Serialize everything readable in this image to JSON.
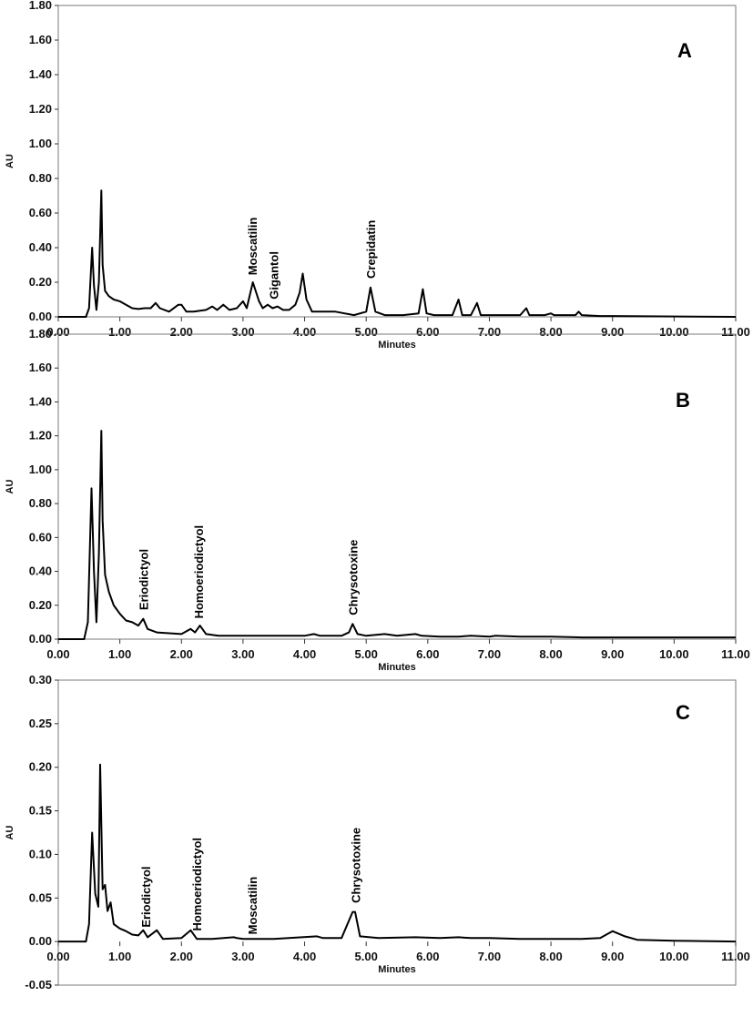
{
  "chart_data": [
    {
      "type": "line",
      "panel_label": "A",
      "xlabel": "Minutes",
      "ylabel": "AU",
      "xlim": [
        0,
        11
      ],
      "ylim": [
        0,
        1.8
      ],
      "x_ticks": [
        "0.00",
        "1.00",
        "2.00",
        "3.00",
        "4.00",
        "5.00",
        "6.00",
        "7.00",
        "8.00",
        "9.00",
        "10.00",
        "11.00"
      ],
      "y_ticks": [
        "0.00",
        "0.20",
        "0.40",
        "0.60",
        "0.80",
        "1.00",
        "1.20",
        "1.40",
        "1.60",
        "1.80"
      ],
      "annotations": [
        {
          "text": "Moscatilin",
          "x": 3.15,
          "y": 0.22
        },
        {
          "text": "Gigantol",
          "x": 3.5,
          "y": 0.08
        },
        {
          "text": "Crepidatin",
          "x": 5.07,
          "y": 0.2
        }
      ],
      "series": [
        {
          "x": [
            0,
            0.45,
            0.5,
            0.55,
            0.58,
            0.62,
            0.66,
            0.7,
            0.72,
            0.76,
            0.82,
            0.9,
            1.0,
            1.1,
            1.2,
            1.3,
            1.4,
            1.5,
            1.58,
            1.65,
            1.8,
            1.95,
            2.0,
            2.08,
            2.2,
            2.4,
            2.5,
            2.58,
            2.68,
            2.78,
            2.9,
            3.0,
            3.06,
            3.16,
            3.26,
            3.32,
            3.4,
            3.48,
            3.56,
            3.65,
            3.75,
            3.85,
            3.92,
            3.97,
            4.03,
            4.12,
            4.25,
            4.5,
            4.8,
            5.0,
            5.07,
            5.15,
            5.3,
            5.6,
            5.85,
            5.92,
            5.98,
            6.1,
            6.4,
            6.5,
            6.56,
            6.7,
            6.8,
            6.86,
            7.0,
            7.5,
            7.6,
            7.65,
            7.9,
            8.0,
            8.05,
            8.4,
            8.45,
            8.5,
            8.8,
            9.0,
            11.0
          ],
          "y": [
            0,
            0.0,
            0.05,
            0.4,
            0.18,
            0.04,
            0.2,
            0.73,
            0.3,
            0.15,
            0.12,
            0.1,
            0.09,
            0.07,
            0.05,
            0.045,
            0.05,
            0.05,
            0.08,
            0.05,
            0.03,
            0.07,
            0.07,
            0.03,
            0.03,
            0.04,
            0.06,
            0.04,
            0.07,
            0.04,
            0.05,
            0.09,
            0.05,
            0.2,
            0.09,
            0.05,
            0.07,
            0.05,
            0.06,
            0.04,
            0.04,
            0.07,
            0.14,
            0.25,
            0.1,
            0.03,
            0.03,
            0.03,
            0.01,
            0.03,
            0.17,
            0.03,
            0.01,
            0.01,
            0.02,
            0.16,
            0.02,
            0.01,
            0.01,
            0.1,
            0.01,
            0.01,
            0.08,
            0.01,
            0.01,
            0.01,
            0.05,
            0.01,
            0.01,
            0.02,
            0.01,
            0.01,
            0.03,
            0.01,
            0.005,
            0.005,
            0.0
          ]
        }
      ]
    },
    {
      "type": "line",
      "panel_label": "B",
      "xlabel": "Minutes",
      "ylabel": "AU",
      "xlim": [
        0,
        11
      ],
      "ylim": [
        0,
        1.8
      ],
      "x_ticks": [
        "0.00",
        "1.00",
        "2.00",
        "3.00",
        "4.00",
        "5.00",
        "6.00",
        "7.00",
        "8.00",
        "9.00",
        "10.00",
        "11.00"
      ],
      "y_ticks": [
        "0.00",
        "0.20",
        "0.40",
        "0.60",
        "0.80",
        "1.00",
        "1.20",
        "1.40",
        "1.60",
        "1.80"
      ],
      "annotations": [
        {
          "text": "Eriodictyol",
          "x": 1.38,
          "y": 0.15
        },
        {
          "text": "Homoeriodictyol",
          "x": 2.28,
          "y": 0.1
        },
        {
          "text": "Chrysotoxine",
          "x": 4.78,
          "y": 0.12
        }
      ],
      "series": [
        {
          "x": [
            0,
            0.42,
            0.48,
            0.54,
            0.58,
            0.62,
            0.66,
            0.7,
            0.72,
            0.76,
            0.82,
            0.9,
            1.0,
            1.1,
            1.2,
            1.3,
            1.38,
            1.45,
            1.6,
            1.8,
            2.0,
            2.15,
            2.22,
            2.3,
            2.4,
            2.6,
            3.0,
            3.5,
            4.0,
            4.15,
            4.25,
            4.6,
            4.72,
            4.78,
            4.86,
            5.0,
            5.3,
            5.5,
            5.8,
            5.9,
            6.2,
            6.5,
            6.7,
            7.0,
            7.1,
            7.5,
            8.0,
            8.5,
            9.0,
            11.0
          ],
          "y": [
            0,
            0.0,
            0.1,
            0.89,
            0.4,
            0.1,
            0.5,
            1.23,
            0.7,
            0.38,
            0.28,
            0.2,
            0.15,
            0.11,
            0.1,
            0.08,
            0.12,
            0.06,
            0.04,
            0.035,
            0.03,
            0.06,
            0.04,
            0.08,
            0.03,
            0.02,
            0.02,
            0.02,
            0.02,
            0.03,
            0.02,
            0.02,
            0.04,
            0.09,
            0.03,
            0.02,
            0.03,
            0.02,
            0.03,
            0.02,
            0.015,
            0.015,
            0.02,
            0.015,
            0.02,
            0.015,
            0.015,
            0.01,
            0.01,
            0.01
          ]
        }
      ]
    },
    {
      "type": "line",
      "panel_label": "C",
      "xlabel": "Minutes",
      "ylabel": "AU",
      "xlim": [
        0,
        11
      ],
      "ylim": [
        -0.05,
        0.3
      ],
      "x_ticks": [
        "0.00",
        "1.00",
        "2.00",
        "3.00",
        "4.00",
        "5.00",
        "6.00",
        "7.00",
        "8.00",
        "9.00",
        "10.00",
        "11.00"
      ],
      "y_ticks": [
        "-0.05",
        "0.00",
        "0.05",
        "0.10",
        "0.15",
        "0.20",
        "0.25",
        "0.30"
      ],
      "annotations": [
        {
          "text": "Eriodictyol",
          "x": 1.42,
          "y": 0.012
        },
        {
          "text": "Homoeriodictyol",
          "x": 2.25,
          "y": 0.008
        },
        {
          "text": "Moscatilin",
          "x": 3.15,
          "y": 0.004
        },
        {
          "text": "Chrysotoxine",
          "x": 4.83,
          "y": 0.04
        }
      ],
      "series": [
        {
          "x": [
            0,
            0.45,
            0.5,
            0.55,
            0.6,
            0.65,
            0.68,
            0.72,
            0.76,
            0.8,
            0.85,
            0.9,
            1.0,
            1.1,
            1.2,
            1.3,
            1.38,
            1.45,
            1.6,
            1.63,
            1.7,
            2.0,
            2.1,
            2.15,
            2.25,
            2.5,
            2.85,
            2.9,
            3.0,
            3.5,
            4.2,
            4.3,
            4.6,
            4.78,
            4.82,
            4.9,
            5.2,
            5.8,
            6.2,
            6.5,
            6.7,
            7.0,
            7.5,
            8.0,
            8.5,
            8.8,
            9.0,
            9.2,
            9.4,
            10.0,
            11.0
          ],
          "y": [
            0,
            0.0,
            0.02,
            0.125,
            0.055,
            0.04,
            0.203,
            0.06,
            0.065,
            0.035,
            0.045,
            0.02,
            0.015,
            0.012,
            0.008,
            0.007,
            0.013,
            0.005,
            0.013,
            0.01,
            0.003,
            0.004,
            0.01,
            0.013,
            0.003,
            0.003,
            0.005,
            0.004,
            0.003,
            0.003,
            0.006,
            0.004,
            0.004,
            0.034,
            0.034,
            0.006,
            0.004,
            0.005,
            0.004,
            0.005,
            0.004,
            0.004,
            0.003,
            0.003,
            0.003,
            0.004,
            0.012,
            0.006,
            0.002,
            0.001,
            0.0
          ]
        }
      ]
    }
  ]
}
